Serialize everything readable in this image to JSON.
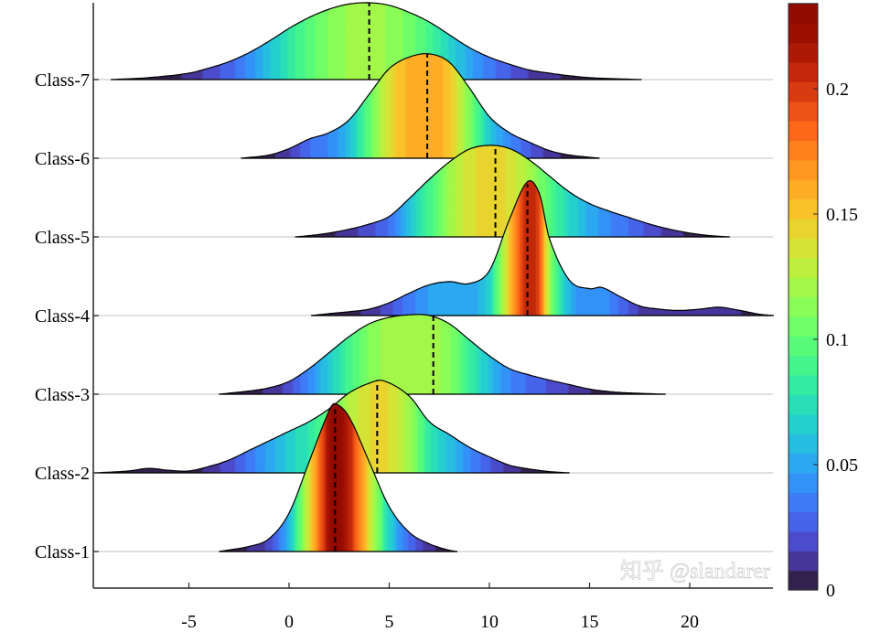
{
  "chart_data": {
    "type": "ridgeline",
    "title": "",
    "xlabel": "",
    "ylabel": "",
    "xlim": [
      -9.7,
      24.2
    ],
    "x_ticks": [
      -5,
      0,
      5,
      10,
      15,
      20
    ],
    "x_tick_labels": [
      "-5",
      "0",
      "5",
      "10",
      "15",
      "20"
    ],
    "grid": false,
    "fill": "horizontal gradient colored by density",
    "colormap": "turbo",
    "colorbar": {
      "range": [
        0,
        0.234
      ],
      "ticks": [
        0,
        0.05,
        0.1,
        0.15,
        0.2
      ],
      "tick_labels": [
        "0",
        "0.05",
        "0.1",
        "0.15",
        "0.2"
      ],
      "levels": 30,
      "placement": "right"
    },
    "series": [
      {
        "name": "Class-1",
        "median": 2.3,
        "x": [
          -3.5,
          -2,
          -1,
          0,
          1,
          2,
          2.3,
          3,
          4,
          5,
          6,
          7,
          8,
          8.4
        ],
        "density": [
          0,
          0.008,
          0.02,
          0.06,
          0.14,
          0.22,
          0.231,
          0.21,
          0.14,
          0.07,
          0.03,
          0.012,
          0.002,
          0
        ]
      },
      {
        "name": "Class-2",
        "median": 4.4,
        "x": [
          -9.7,
          -8,
          -7,
          -6,
          -5,
          -4,
          -3,
          -2,
          -1,
          0,
          1,
          2,
          3,
          4,
          4.7,
          6,
          7,
          8,
          9,
          10,
          11,
          12,
          13,
          14
        ],
        "density": [
          0,
          0.003,
          0.007,
          0.004,
          0.003,
          0.01,
          0.02,
          0.035,
          0.05,
          0.065,
          0.08,
          0.1,
          0.125,
          0.14,
          0.144,
          0.12,
          0.08,
          0.06,
          0.04,
          0.025,
          0.012,
          0.006,
          0.002,
          0
        ]
      },
      {
        "name": "Class-3",
        "median": 7.2,
        "x": [
          -3.5,
          -2,
          -1,
          0,
          1,
          2,
          3,
          4,
          5,
          6,
          7,
          8,
          9,
          10,
          11,
          12,
          13,
          14,
          15,
          16,
          17,
          18.8
        ],
        "density": [
          0,
          0.005,
          0.01,
          0.02,
          0.04,
          0.065,
          0.09,
          0.11,
          0.12,
          0.124,
          0.123,
          0.11,
          0.085,
          0.06,
          0.04,
          0.03,
          0.022,
          0.015,
          0.008,
          0.004,
          0.002,
          0
        ]
      },
      {
        "name": "Class-4",
        "median": 11.9,
        "x": [
          1.1,
          2,
          3,
          4,
          5,
          6,
          7,
          8,
          9,
          10,
          11,
          11.9,
          12.5,
          13,
          14,
          15,
          15.6,
          16.5,
          17.5,
          18.5,
          19.5,
          20.5,
          21.5,
          22.5,
          23.5,
          24.2
        ],
        "density": [
          0,
          0.003,
          0.006,
          0.01,
          0.02,
          0.035,
          0.048,
          0.053,
          0.05,
          0.07,
          0.15,
          0.209,
          0.19,
          0.12,
          0.055,
          0.042,
          0.044,
          0.03,
          0.015,
          0.01,
          0.008,
          0.01,
          0.013,
          0.008,
          0.002,
          0
        ]
      },
      {
        "name": "Class-5",
        "median": 10.3,
        "x": [
          0.3,
          1,
          2,
          3,
          4,
          5,
          6,
          7,
          8,
          9,
          10,
          11,
          12,
          13,
          14,
          15,
          16,
          17,
          18,
          19,
          20,
          21,
          22
        ],
        "density": [
          0,
          0.002,
          0.006,
          0.012,
          0.02,
          0.032,
          0.06,
          0.09,
          0.117,
          0.137,
          0.143,
          0.138,
          0.12,
          0.095,
          0.07,
          0.052,
          0.04,
          0.03,
          0.02,
          0.012,
          0.006,
          0.002,
          0
        ]
      },
      {
        "name": "Class-6",
        "median": 6.9,
        "x": [
          -2.4,
          -1,
          0,
          1,
          2,
          3,
          4,
          5,
          6,
          7,
          8,
          9,
          10,
          11,
          12,
          13,
          14,
          15.5
        ],
        "density": [
          0,
          0.005,
          0.015,
          0.03,
          0.04,
          0.06,
          0.1,
          0.14,
          0.158,
          0.163,
          0.15,
          0.11,
          0.065,
          0.04,
          0.025,
          0.012,
          0.005,
          0
        ]
      },
      {
        "name": "Class-7",
        "median": 4.0,
        "x": [
          -8.9,
          -7,
          -5,
          -4,
          -3,
          -2,
          -1,
          0,
          1,
          2,
          3,
          4,
          5,
          6,
          7,
          8,
          9,
          10,
          11,
          12,
          13,
          14,
          15,
          17.6
        ],
        "density": [
          0,
          0.003,
          0.01,
          0.018,
          0.028,
          0.042,
          0.06,
          0.08,
          0.097,
          0.11,
          0.118,
          0.12,
          0.116,
          0.105,
          0.09,
          0.07,
          0.05,
          0.035,
          0.024,
          0.015,
          0.01,
          0.006,
          0.003,
          0
        ]
      }
    ]
  },
  "watermark": "知乎 @slandarer",
  "colors": {
    "baseline": "#e0e0e0",
    "axis": "#262626",
    "median_line": "#000000"
  }
}
